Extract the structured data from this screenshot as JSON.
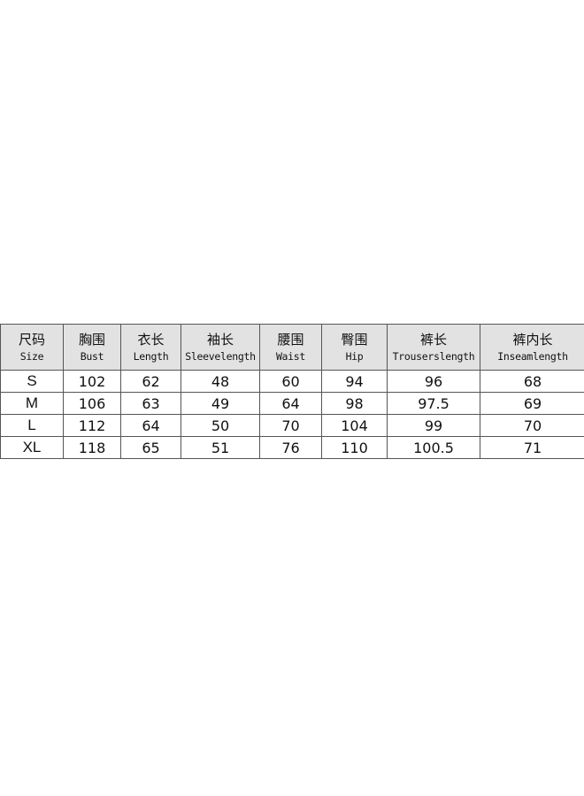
{
  "table": {
    "headers": [
      {
        "cn": "尺码",
        "en": "Size"
      },
      {
        "cn": "胸围",
        "en": "Bust"
      },
      {
        "cn": "衣长",
        "en": "Length"
      },
      {
        "cn": "袖长",
        "en": "Sleevelength"
      },
      {
        "cn": "腰围",
        "en": "Waist"
      },
      {
        "cn": "臀围",
        "en": "Hip"
      },
      {
        "cn": "裤长",
        "en": "Trouserslength"
      },
      {
        "cn": "裤内长",
        "en": "Inseamlength"
      }
    ],
    "rows": [
      [
        "S",
        "102",
        "62",
        "48",
        "60",
        "94",
        "96",
        "68"
      ],
      [
        "M",
        "106",
        "63",
        "49",
        "64",
        "98",
        "97.5",
        "69"
      ],
      [
        "L",
        "112",
        "64",
        "50",
        "70",
        "104",
        "99",
        "70"
      ],
      [
        "XL",
        "118",
        "65",
        "51",
        "76",
        "110",
        "100.5",
        "71"
      ]
    ]
  },
  "colors": {
    "header_bg": "#e2e2e2",
    "border": "#555555"
  }
}
